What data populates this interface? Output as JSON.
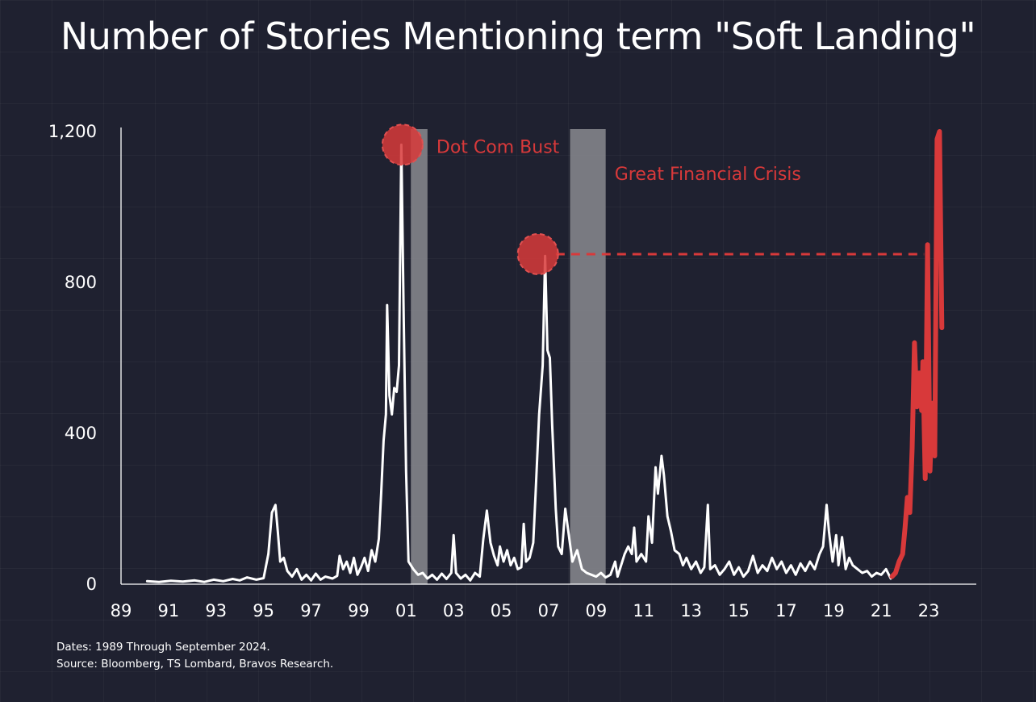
{
  "chart_data": {
    "type": "line",
    "title": "Number of Stories Mentioning term \"Soft Landing\"",
    "xlabel": "",
    "ylabel": "",
    "xlim": [
      1989,
      2025
    ],
    "ylim": [
      0,
      1200
    ],
    "x_ticks": [
      1989,
      1991,
      1993,
      1995,
      1997,
      1999,
      2001,
      2003,
      2005,
      2007,
      2009,
      2011,
      2013,
      2015,
      2017,
      2019,
      2021,
      2023
    ],
    "x_tick_labels": [
      "89",
      "91",
      "93",
      "95",
      "97",
      "99",
      "01",
      "03",
      "05",
      "07",
      "09",
      "11",
      "13",
      "15",
      "17",
      "19",
      "21",
      "23"
    ],
    "y_ticks": [
      0,
      400,
      800,
      1200
    ],
    "y_tick_labels": [
      "0",
      "400",
      "800",
      "1,200"
    ],
    "grid": true,
    "colors": {
      "background": "#1f2130",
      "line": "#ffffff",
      "highlight": "#d8393a",
      "shade": "#8a8a8f"
    },
    "shaded_periods": [
      {
        "start": 2001.2,
        "end": 2001.9
      },
      {
        "start": 2007.9,
        "end": 2009.4
      }
    ],
    "annotations": [
      {
        "label": "Dot Com Bust",
        "x": 2000.85,
        "y": 1165
      },
      {
        "label": "Great Financial Crisis",
        "x": 2006.55,
        "y": 875
      }
    ],
    "reference_line": {
      "y": 875,
      "x_start": 2007.3,
      "x_end": 2022.8
    },
    "series": [
      {
        "role": "main",
        "points": [
          [
            1990.1,
            8
          ],
          [
            1990.6,
            6
          ],
          [
            1991.1,
            9
          ],
          [
            1991.6,
            7
          ],
          [
            1992.1,
            10
          ],
          [
            1992.5,
            6
          ],
          [
            1992.9,
            12
          ],
          [
            1993.3,
            8
          ],
          [
            1993.7,
            14
          ],
          [
            1994.0,
            10
          ],
          [
            1994.3,
            18
          ],
          [
            1994.7,
            12
          ],
          [
            1995.0,
            16
          ],
          [
            1995.2,
            80
          ],
          [
            1995.35,
            190
          ],
          [
            1995.5,
            210
          ],
          [
            1995.6,
            140
          ],
          [
            1995.7,
            60
          ],
          [
            1995.85,
            70
          ],
          [
            1996.0,
            35
          ],
          [
            1996.2,
            20
          ],
          [
            1996.4,
            40
          ],
          [
            1996.6,
            12
          ],
          [
            1996.8,
            25
          ],
          [
            1997.0,
            10
          ],
          [
            1997.2,
            28
          ],
          [
            1997.4,
            12
          ],
          [
            1997.6,
            20
          ],
          [
            1997.9,
            15
          ],
          [
            1998.1,
            22
          ],
          [
            1998.2,
            75
          ],
          [
            1998.35,
            40
          ],
          [
            1998.5,
            60
          ],
          [
            1998.65,
            30
          ],
          [
            1998.8,
            70
          ],
          [
            1998.95,
            25
          ],
          [
            1999.1,
            45
          ],
          [
            1999.25,
            70
          ],
          [
            1999.4,
            35
          ],
          [
            1999.55,
            90
          ],
          [
            1999.7,
            60
          ],
          [
            1999.85,
            120
          ],
          [
            1999.95,
            240
          ],
          [
            2000.05,
            380
          ],
          [
            2000.15,
            450
          ],
          [
            2000.2,
            740
          ],
          [
            2000.3,
            500
          ],
          [
            2000.4,
            450
          ],
          [
            2000.5,
            520
          ],
          [
            2000.6,
            510
          ],
          [
            2000.7,
            580
          ],
          [
            2000.8,
            1165
          ],
          [
            2000.9,
            700
          ],
          [
            2001.0,
            300
          ],
          [
            2001.1,
            60
          ],
          [
            2001.3,
            40
          ],
          [
            2001.5,
            25
          ],
          [
            2001.7,
            30
          ],
          [
            2001.9,
            15
          ],
          [
            2002.1,
            25
          ],
          [
            2002.3,
            12
          ],
          [
            2002.5,
            28
          ],
          [
            2002.7,
            14
          ],
          [
            2002.9,
            30
          ],
          [
            2003.0,
            130
          ],
          [
            2003.1,
            30
          ],
          [
            2003.3,
            15
          ],
          [
            2003.5,
            25
          ],
          [
            2003.7,
            10
          ],
          [
            2003.9,
            30
          ],
          [
            2004.1,
            20
          ],
          [
            2004.25,
            120
          ],
          [
            2004.4,
            195
          ],
          [
            2004.55,
            110
          ],
          [
            2004.7,
            75
          ],
          [
            2004.85,
            50
          ],
          [
            2004.95,
            100
          ],
          [
            2005.1,
            60
          ],
          [
            2005.25,
            90
          ],
          [
            2005.4,
            50
          ],
          [
            2005.55,
            70
          ],
          [
            2005.7,
            40
          ],
          [
            2005.85,
            45
          ],
          [
            2005.95,
            160
          ],
          [
            2006.05,
            60
          ],
          [
            2006.2,
            70
          ],
          [
            2006.35,
            110
          ],
          [
            2006.45,
            240
          ],
          [
            2006.6,
            450
          ],
          [
            2006.75,
            580
          ],
          [
            2006.85,
            870
          ],
          [
            2006.95,
            620
          ],
          [
            2007.05,
            600
          ],
          [
            2007.15,
            420
          ],
          [
            2007.3,
            200
          ],
          [
            2007.4,
            100
          ],
          [
            2007.55,
            80
          ],
          [
            2007.7,
            200
          ],
          [
            2007.85,
            130
          ],
          [
            2008.0,
            60
          ],
          [
            2008.2,
            90
          ],
          [
            2008.4,
            40
          ],
          [
            2008.6,
            30
          ],
          [
            2008.8,
            25
          ],
          [
            2009.0,
            20
          ],
          [
            2009.2,
            30
          ],
          [
            2009.4,
            18
          ],
          [
            2009.6,
            25
          ],
          [
            2009.8,
            60
          ],
          [
            2009.9,
            20
          ],
          [
            2010.0,
            40
          ],
          [
            2010.2,
            80
          ],
          [
            2010.35,
            100
          ],
          [
            2010.5,
            80
          ],
          [
            2010.6,
            150
          ],
          [
            2010.7,
            60
          ],
          [
            2010.9,
            80
          ],
          [
            2011.1,
            60
          ],
          [
            2011.2,
            180
          ],
          [
            2011.35,
            110
          ],
          [
            2011.5,
            310
          ],
          [
            2011.6,
            240
          ],
          [
            2011.75,
            340
          ],
          [
            2011.85,
            290
          ],
          [
            2012.0,
            180
          ],
          [
            2012.15,
            140
          ],
          [
            2012.3,
            90
          ],
          [
            2012.5,
            80
          ],
          [
            2012.65,
            50
          ],
          [
            2012.8,
            70
          ],
          [
            2013.0,
            40
          ],
          [
            2013.2,
            60
          ],
          [
            2013.4,
            30
          ],
          [
            2013.55,
            45
          ],
          [
            2013.7,
            210
          ],
          [
            2013.8,
            40
          ],
          [
            2014.0,
            50
          ],
          [
            2014.2,
            25
          ],
          [
            2014.4,
            40
          ],
          [
            2014.6,
            60
          ],
          [
            2014.8,
            25
          ],
          [
            2015.0,
            45
          ],
          [
            2015.2,
            20
          ],
          [
            2015.4,
            35
          ],
          [
            2015.6,
            75
          ],
          [
            2015.8,
            30
          ],
          [
            2016.0,
            50
          ],
          [
            2016.2,
            35
          ],
          [
            2016.4,
            70
          ],
          [
            2016.6,
            40
          ],
          [
            2016.8,
            60
          ],
          [
            2017.0,
            30
          ],
          [
            2017.2,
            50
          ],
          [
            2017.4,
            25
          ],
          [
            2017.6,
            55
          ],
          [
            2017.8,
            35
          ],
          [
            2018.0,
            60
          ],
          [
            2018.2,
            40
          ],
          [
            2018.4,
            80
          ],
          [
            2018.55,
            100
          ],
          [
            2018.7,
            210
          ],
          [
            2018.8,
            140
          ],
          [
            2018.95,
            60
          ],
          [
            2019.1,
            130
          ],
          [
            2019.2,
            50
          ],
          [
            2019.35,
            125
          ],
          [
            2019.5,
            40
          ],
          [
            2019.65,
            70
          ],
          [
            2019.8,
            50
          ],
          [
            2020.0,
            40
          ],
          [
            2020.2,
            30
          ],
          [
            2020.4,
            35
          ],
          [
            2020.6,
            20
          ],
          [
            2020.8,
            30
          ],
          [
            2021.0,
            25
          ],
          [
            2021.2,
            40
          ],
          [
            2021.4,
            15
          ]
        ]
      },
      {
        "role": "highlight",
        "points": [
          [
            2021.45,
            20
          ],
          [
            2021.6,
            30
          ],
          [
            2021.75,
            60
          ],
          [
            2021.9,
            80
          ],
          [
            2022.0,
            150
          ],
          [
            2022.1,
            230
          ],
          [
            2022.2,
            190
          ],
          [
            2022.3,
            360
          ],
          [
            2022.4,
            640
          ],
          [
            2022.5,
            470
          ],
          [
            2022.6,
            560
          ],
          [
            2022.7,
            460
          ],
          [
            2022.75,
            590
          ],
          [
            2022.85,
            280
          ],
          [
            2022.95,
            900
          ],
          [
            2023.05,
            300
          ],
          [
            2023.15,
            480
          ],
          [
            2023.25,
            340
          ],
          [
            2023.35,
            1180
          ],
          [
            2023.45,
            1200
          ],
          [
            2023.55,
            680
          ]
        ]
      }
    ]
  },
  "footnotes": {
    "dates": "Dates: 1989 Through September 2024.",
    "source": "Source: Bloomberg, TS Lombard, Bravos Research."
  }
}
